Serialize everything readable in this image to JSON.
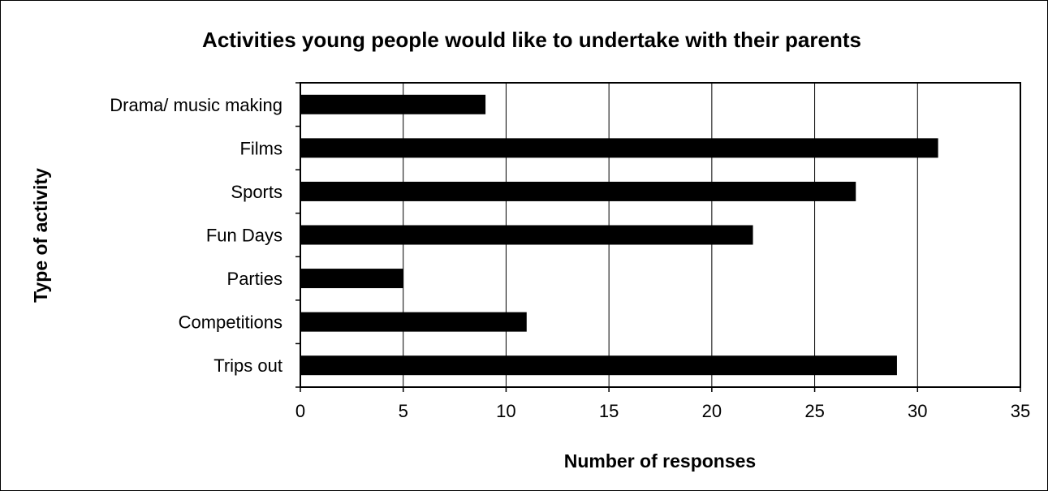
{
  "chart_data": {
    "type": "bar",
    "orientation": "horizontal",
    "title": "Activities young people would like to undertake with their parents",
    "xlabel": "Number of responses",
    "ylabel": "Type of activity",
    "categories": [
      "Drama/ music making",
      "Films",
      "Sports",
      "Fun Days",
      "Parties",
      "Competitions",
      "Trips out"
    ],
    "values": [
      9,
      31,
      27,
      22,
      5,
      11,
      29
    ],
    "xlim": [
      0,
      35
    ],
    "xticks": [
      "0",
      "5",
      "10",
      "15",
      "20",
      "25",
      "30",
      "35"
    ],
    "grid": "vertical",
    "legend": "none",
    "bar_color": "#000000"
  }
}
